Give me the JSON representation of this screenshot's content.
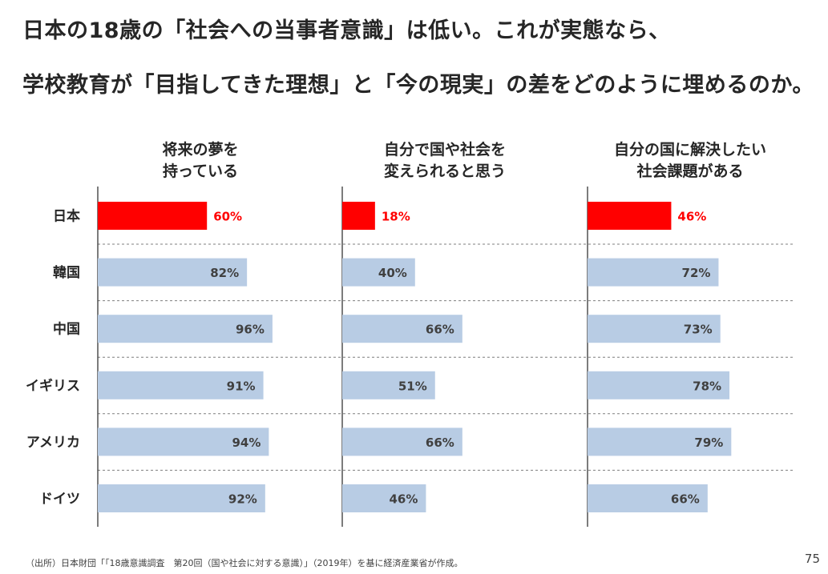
{
  "headline": {
    "line1": "日本の18歳の「社会への当事者意識」は低い。これが実態なら、",
    "line2": "学校教育が「目指してきた理想」と「今の現実」の差をどのように埋めるのか。"
  },
  "chart_data": {
    "type": "bar",
    "orientation": "horizontal",
    "categories": [
      "日本",
      "韓国",
      "中国",
      "イギリス",
      "アメリカ",
      "ドイツ"
    ],
    "panels": [
      {
        "title_lines": [
          "将来の夢を",
          "持っている"
        ],
        "values": [
          60,
          82,
          96,
          91,
          94,
          92
        ]
      },
      {
        "title_lines": [
          "自分で国や社会を",
          "変えられると思う"
        ],
        "values": [
          18,
          40,
          66,
          51,
          66,
          46
        ]
      },
      {
        "title_lines": [
          "自分の国に解決したい",
          "社会課題がある"
        ],
        "values": [
          46,
          72,
          73,
          78,
          79,
          66
        ]
      }
    ],
    "value_suffix": "%",
    "highlight_category": "日本",
    "colors": {
      "highlight": "#ff0000",
      "default": "#b8cce4",
      "highlight_label": "#ff0000",
      "default_label": "#404040"
    },
    "grid": "dashed separators between rows"
  },
  "footer": {
    "source": "（出所）日本財団「「18歳意識調査　第20回（国や社会に対する意識）」（2019年）を基に経済産業省が作成。",
    "page_number": "75"
  }
}
